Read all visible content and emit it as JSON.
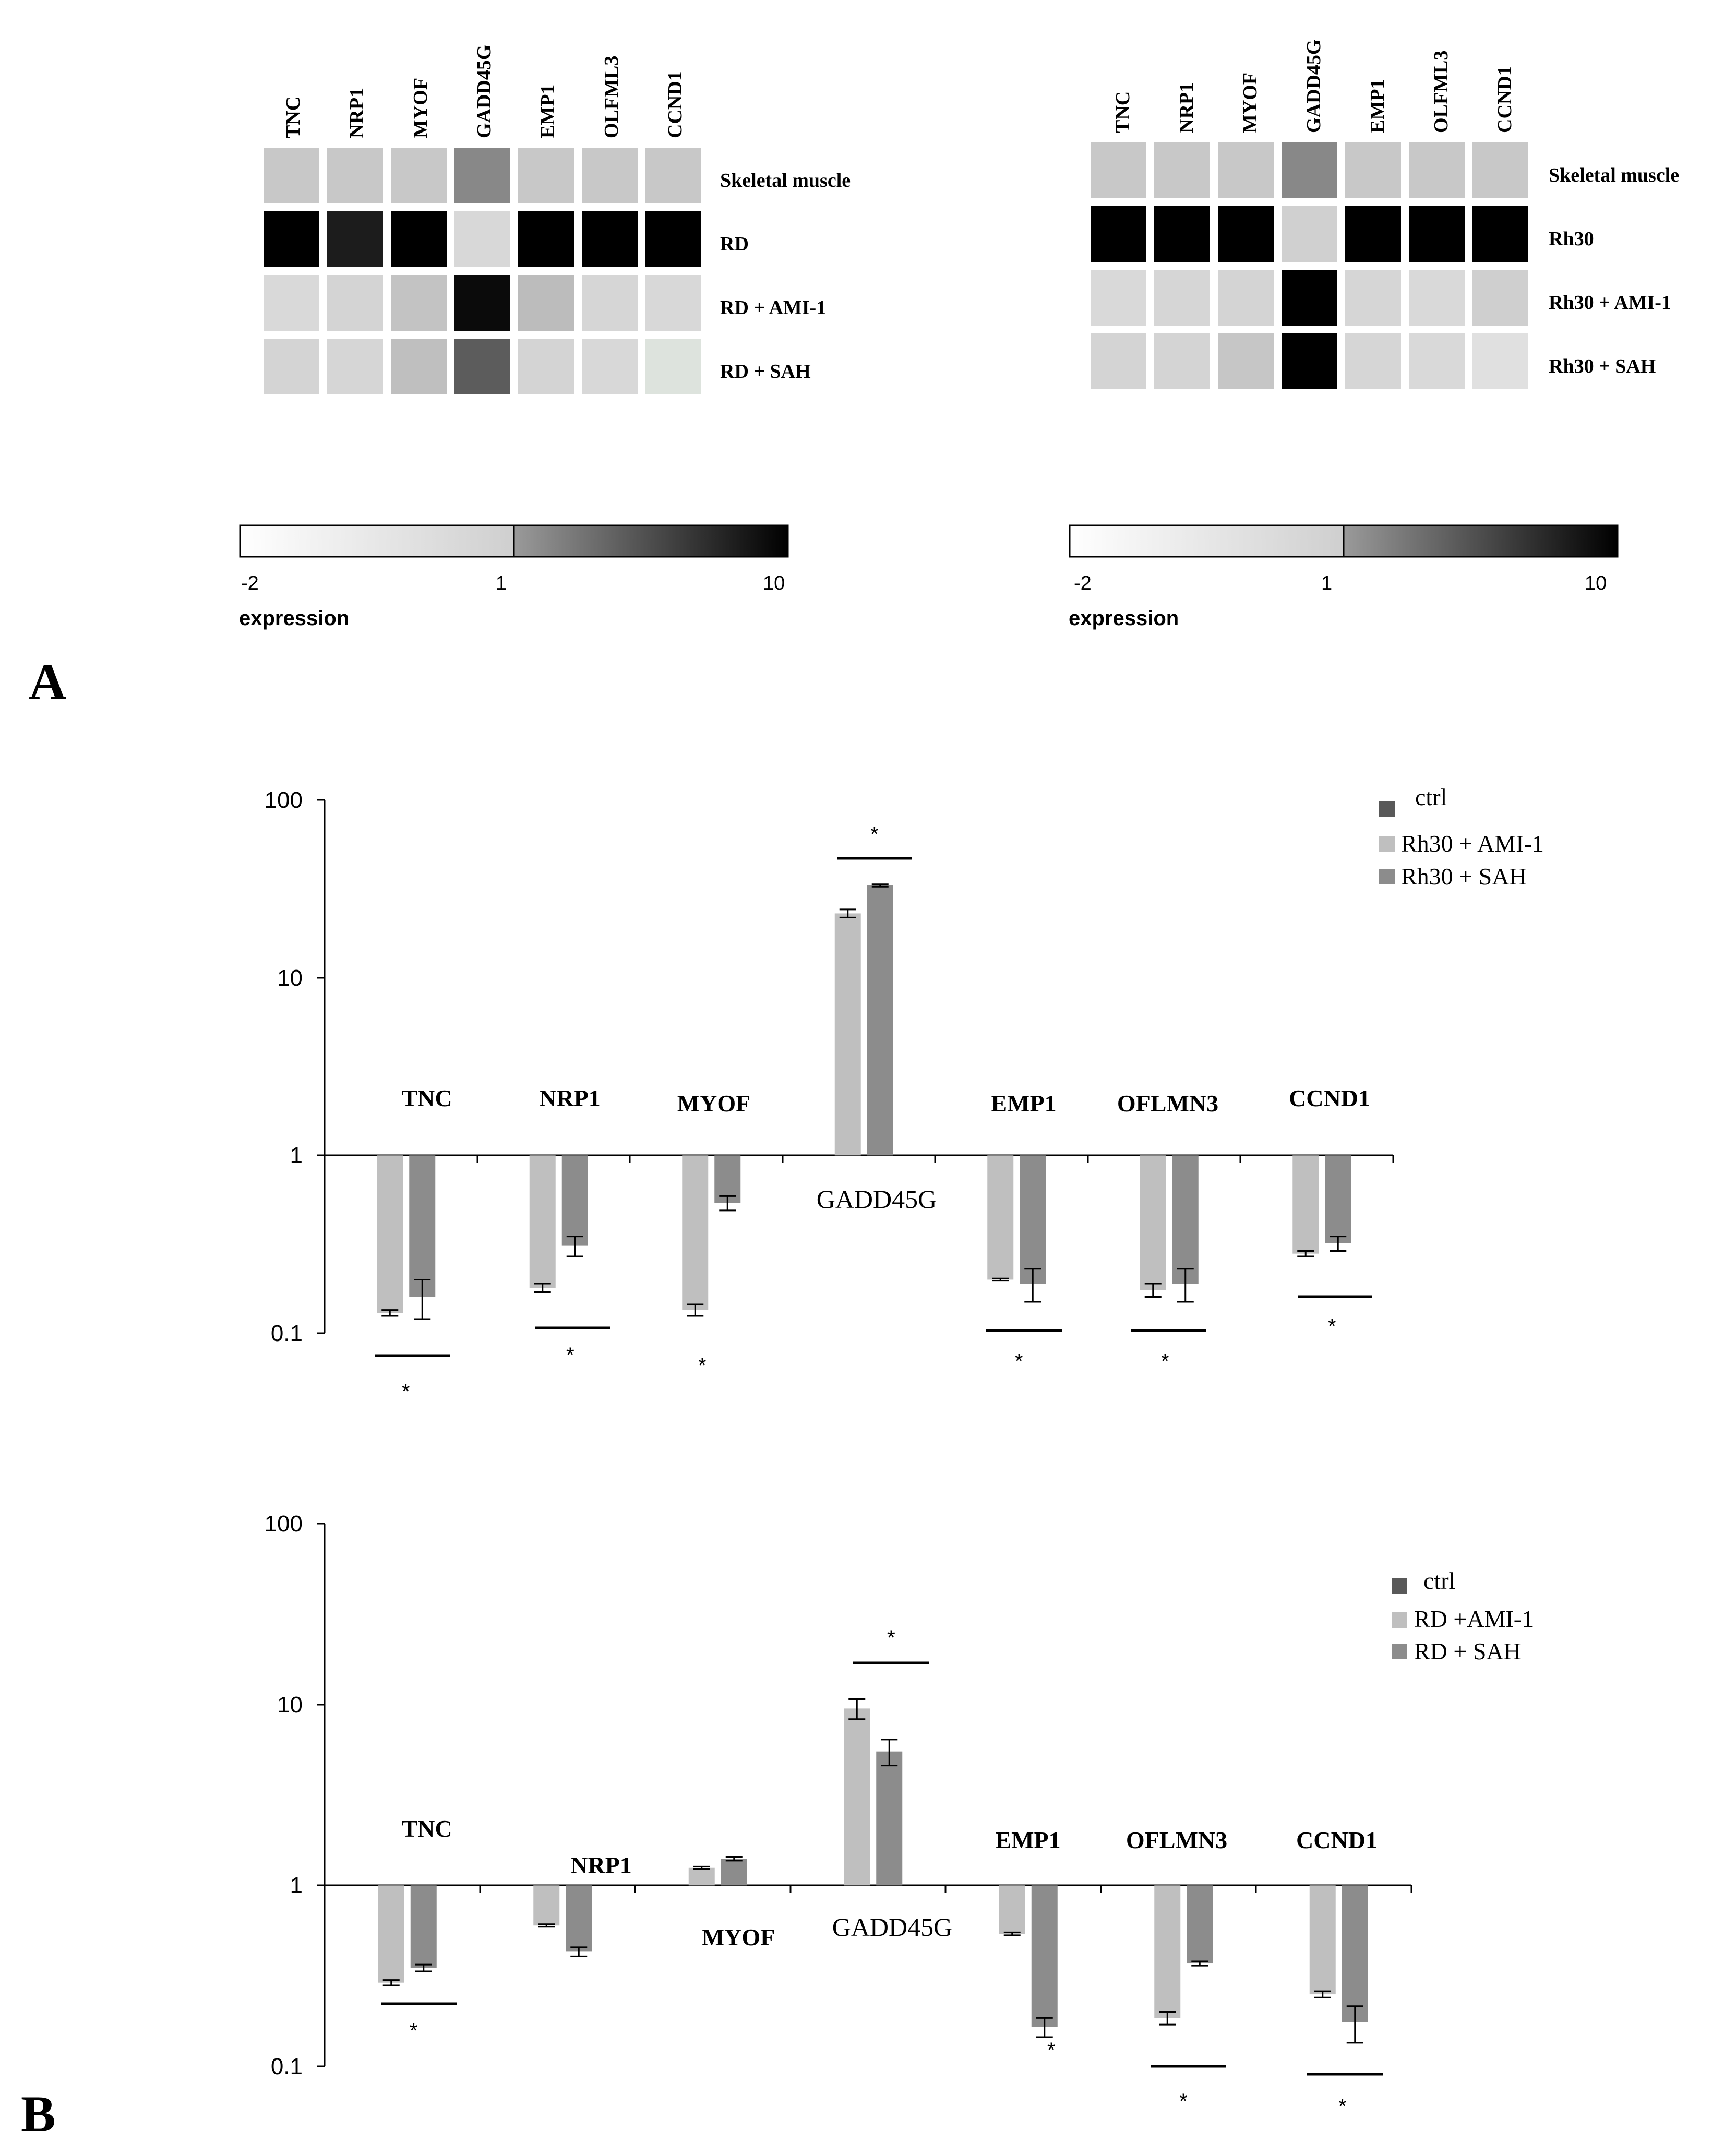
{
  "panel_labels": {
    "a": "A",
    "b": "B"
  },
  "heatmaps": [
    {
      "genes": [
        "TNC",
        "NRP1",
        "MYOF",
        "GADD45G",
        "EMP1",
        "OLFML3",
        "CCND1"
      ],
      "rows": [
        {
          "label": "Skeletal muscle",
          "colors": [
            "#c8c8c8",
            "#c8c8c8",
            "#c8c8c8",
            "#888888",
            "#c8c8c8",
            "#c8c8c8",
            "#c8c8c8"
          ]
        },
        {
          "label": "RD",
          "colors": [
            "#000000",
            "#1c1c1c",
            "#000000",
            "#d8d8d8",
            "#000000",
            "#000000",
            "#000000"
          ]
        },
        {
          "label": "RD + AMI-1",
          "colors": [
            "#d9d9d9",
            "#d4d4d4",
            "#c3c3c3",
            "#0b0b0b",
            "#bcbcbc",
            "#d6d6d6",
            "#d8d8d8"
          ]
        },
        {
          "label": "RD + SAH",
          "colors": [
            "#d4d4d4",
            "#d6d6d6",
            "#bfbfbf",
            "#5c5c5c",
            "#d4d4d4",
            "#d8d8d8",
            "#dde3dd"
          ]
        }
      ],
      "scale": {
        "ticks": [
          "-2",
          "1",
          "10"
        ],
        "label": "expression"
      }
    },
    {
      "genes": [
        "TNC",
        "NRP1",
        "MYOF",
        "GADD45G",
        "EMP1",
        "OLFML3",
        "CCND1"
      ],
      "rows": [
        {
          "label": "Skeletal muscle",
          "colors": [
            "#c8c8c8",
            "#c8c8c8",
            "#c8c8c8",
            "#888888",
            "#c8c8c8",
            "#c8c8c8",
            "#c8c8c8"
          ]
        },
        {
          "label": "Rh30",
          "colors": [
            "#000000",
            "#000000",
            "#000000",
            "#d0d0d0",
            "#000000",
            "#000000",
            "#000000"
          ]
        },
        {
          "label": "Rh30 + AMI-1",
          "colors": [
            "#d9d9d9",
            "#d6d6d6",
            "#d4d4d4",
            "#000000",
            "#d6d6d6",
            "#d9d9d9",
            "#cfcfcf"
          ]
        },
        {
          "label": "Rh30 + SAH",
          "colors": [
            "#d4d4d4",
            "#d4d4d4",
            "#c6c6c6",
            "#000000",
            "#d6d6d6",
            "#d9d9d9",
            "#e0e0e0"
          ]
        }
      ],
      "scale": {
        "ticks": [
          "-2",
          "1",
          "10"
        ],
        "label": "expression"
      }
    }
  ],
  "colors": {
    "ctrl": "#595959",
    "ami": "#bfbfbf",
    "sah": "#8c8c8c",
    "axis": "#000000"
  },
  "chart_data": [
    {
      "type": "bar",
      "yscale": "log",
      "ylim": [
        0.1,
        100
      ],
      "yticks": [
        "0.1",
        "1",
        "10",
        "100"
      ],
      "categories": [
        "TNC",
        "NRP1",
        "MYOF",
        "GADD45G",
        "EMP1",
        "OFLMN3",
        "CCND1"
      ],
      "legend": [
        "ctrl",
        "Rh30 + AMI-1",
        "Rh30 + SAH"
      ],
      "legend_position": "top-right",
      "series": [
        {
          "name": "Rh30 + AMI-1",
          "values": [
            0.13,
            0.18,
            0.135,
            23,
            0.2,
            0.175,
            0.28
          ],
          "errors": [
            0.005,
            0.01,
            0.01,
            1.2,
            0.003,
            0.015,
            0.01
          ]
        },
        {
          "name": "Rh30 + SAH",
          "values": [
            0.16,
            0.31,
            0.54,
            33,
            0.19,
            0.19,
            0.32
          ],
          "errors": [
            0.04,
            0.04,
            0.05,
            0.5,
            0.04,
            0.04,
            0.03
          ]
        }
      ],
      "significance": "*"
    },
    {
      "type": "bar",
      "yscale": "log",
      "ylim": [
        0.1,
        100
      ],
      "yticks": [
        "0.1",
        "1",
        "10",
        "100"
      ],
      "categories": [
        "TNC",
        "NRP1",
        "MYOF",
        "GADD45G",
        "EMP1",
        "OFLMN3",
        "CCND1"
      ],
      "legend": [
        "ctrl",
        "RD +AMI-1",
        "RD + SAH"
      ],
      "legend_position": "top-right",
      "series": [
        {
          "name": "RD +AMI-1",
          "values": [
            0.29,
            0.6,
            1.25,
            9.5,
            0.54,
            0.185,
            0.25
          ],
          "errors": [
            0.01,
            0.01,
            0.02,
            1.2,
            0.01,
            0.015,
            0.01
          ]
        },
        {
          "name": "RD + SAH",
          "values": [
            0.35,
            0.43,
            1.4,
            5.5,
            0.165,
            0.37,
            0.175
          ],
          "errors": [
            0.015,
            0.025,
            0.03,
            0.9,
            0.02,
            0.01,
            0.04
          ]
        }
      ],
      "significance": "*"
    }
  ]
}
